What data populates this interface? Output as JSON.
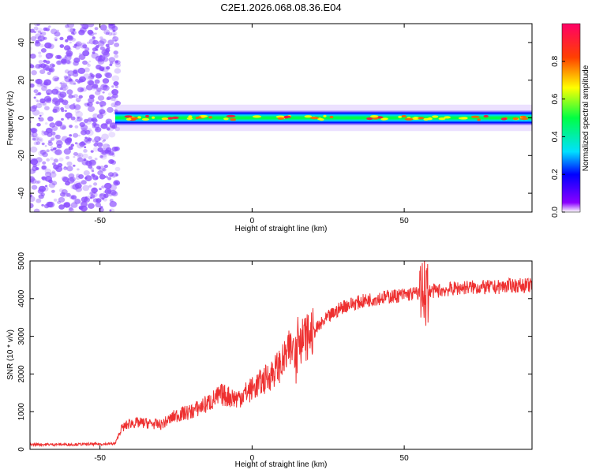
{
  "title": "C2E1.2026.068.08.36.E04",
  "colors": {
    "snr_line": "#ee3030",
    "background_noise": "#8a4cff",
    "colorbar_stops": [
      "#ffffff",
      "#8a00ff",
      "#0000ff",
      "#00e0ff",
      "#00ff44",
      "#ffff00",
      "#ff4000",
      "#ff0066"
    ]
  },
  "chart_data": [
    {
      "type": "heatmap",
      "name": "spectrogram",
      "title": "C2E1.2026.068.08.36.E04",
      "xlabel": "Height of straight line (km)",
      "ylabel": "Frequency (Hz)",
      "xlim": [
        -73,
        92
      ],
      "ylim": [
        -50,
        50
      ],
      "xticks": [
        -50,
        0,
        50
      ],
      "yticks": [
        -40,
        -20,
        0,
        20,
        40
      ],
      "noise_region_x": [
        -73,
        -45
      ],
      "signal_band_hz": [
        -3,
        3
      ],
      "signal_start_x": -45,
      "colorbar": {
        "label": "Normalized spectral amplitude",
        "range": [
          0.0,
          1.0
        ],
        "ticks": [
          "0.0",
          "0.2",
          "0.4",
          "0.6",
          "0.8"
        ]
      }
    },
    {
      "type": "line",
      "name": "snr",
      "xlabel": "Height of straight line (km)",
      "ylabel": "SNR (10 * v/v)",
      "xlim": [
        -73,
        92
      ],
      "ylim": [
        0,
        5000
      ],
      "xticks": [
        -50,
        0,
        50
      ],
      "yticks": [
        0,
        1000,
        2000,
        3000,
        4000,
        5000
      ],
      "x": [
        -73,
        -60,
        -50,
        -45,
        -43,
        -40,
        -35,
        -30,
        -25,
        -20,
        -15,
        -10,
        -5,
        0,
        5,
        10,
        12,
        15,
        20,
        25,
        30,
        35,
        40,
        45,
        50,
        55,
        57,
        60,
        65,
        70,
        75,
        80,
        85,
        92
      ],
      "y": [
        130,
        130,
        140,
        150,
        550,
        700,
        700,
        650,
        900,
        1000,
        1200,
        1450,
        1350,
        1600,
        1900,
        2300,
        2600,
        2800,
        3100,
        3500,
        3800,
        3900,
        4000,
        4050,
        4100,
        4150,
        4200,
        4200,
        4250,
        4300,
        4300,
        4300,
        4350,
        4350
      ]
    }
  ]
}
